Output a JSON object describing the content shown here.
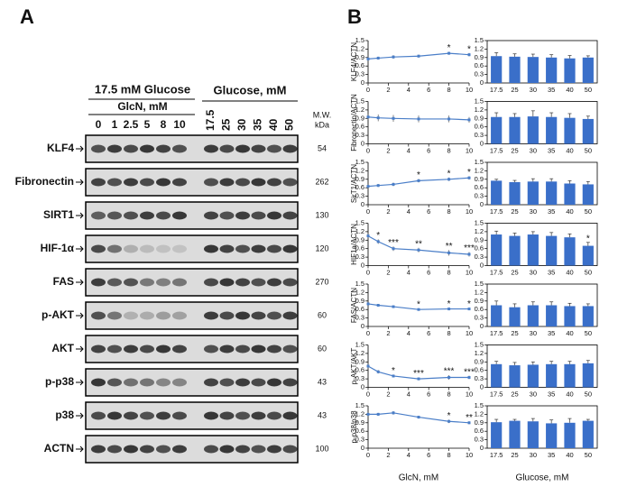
{
  "panel_a": {
    "label": "A",
    "left_header": "17.5 mM Glucose",
    "left_subheader": "GlcN, mM",
    "left_lanes": [
      "0",
      "1",
      "2.5",
      "5",
      "8",
      "10"
    ],
    "right_header": "Glucose, mM",
    "right_lanes": [
      "17.5",
      "25",
      "30",
      "35",
      "40",
      "50"
    ],
    "mw_header": [
      "M.W.",
      "kDa"
    ],
    "rows": [
      {
        "name": "KLF4",
        "mw": "54"
      },
      {
        "name": "Fibronectin",
        "mw": "262"
      },
      {
        "name": "SIRT1",
        "mw": "130"
      },
      {
        "name": "HIF-1α",
        "mw": "120"
      },
      {
        "name": "FAS",
        "mw": "270"
      },
      {
        "name": "p-AKT",
        "mw": "60"
      },
      {
        "name": "AKT",
        "mw": "60"
      },
      {
        "name": "p-p38",
        "mw": "43"
      },
      {
        "name": "p38",
        "mw": "43"
      },
      {
        "name": "ACTN",
        "mw": "100"
      }
    ]
  },
  "panel_b": {
    "label": "B"
  },
  "chart_data": [
    {
      "type": "line",
      "ylabel": "KLF4/ACTN",
      "x": [
        0,
        1,
        2.5,
        5,
        8,
        10
      ],
      "values": [
        0.85,
        0.88,
        0.92,
        0.95,
        1.05,
        1.0
      ],
      "errors": [
        0.06,
        0.05,
        0.06,
        0.05,
        0.05,
        0.06
      ],
      "color": "#4a7ec8",
      "xlim": [
        0,
        10
      ],
      "xticks": [
        0,
        2,
        4,
        6,
        8,
        10
      ],
      "ylim": [
        0,
        1.5
      ],
      "yticks": [
        0,
        0.3,
        0.6,
        0.9,
        1.2,
        1.5
      ],
      "annotations": [
        {
          "x": 8,
          "text": "*"
        },
        {
          "x": 10,
          "text": "*"
        }
      ]
    },
    {
      "type": "bar",
      "categories": [
        "17.5",
        "25",
        "30",
        "35",
        "40",
        "50"
      ],
      "values": [
        0.95,
        0.93,
        0.92,
        0.9,
        0.87,
        0.9
      ],
      "errors": [
        0.12,
        0.1,
        0.1,
        0.1,
        0.1,
        0.06
      ],
      "color": "#3a6fc9",
      "ylim": [
        0,
        1.5
      ],
      "yticks": [
        0,
        0.3,
        0.6,
        0.9,
        1.2,
        1.5
      ]
    },
    {
      "type": "line",
      "ylabel": "Fibronectin/ACTN",
      "x": [
        0,
        1,
        2.5,
        5,
        8,
        10
      ],
      "values": [
        0.95,
        0.92,
        0.9,
        0.88,
        0.88,
        0.85
      ],
      "errors": [
        0.1,
        0.12,
        0.12,
        0.12,
        0.12,
        0.1
      ],
      "color": "#4a7ec8",
      "xlim": [
        0,
        10
      ],
      "xticks": [
        0,
        2,
        4,
        6,
        8,
        10
      ],
      "ylim": [
        0,
        1.5
      ],
      "yticks": [
        0,
        0.3,
        0.6,
        0.9,
        1.2,
        1.5
      ],
      "annotations": []
    },
    {
      "type": "bar",
      "categories": [
        "17.5",
        "25",
        "30",
        "35",
        "40",
        "50"
      ],
      "values": [
        0.95,
        0.95,
        0.97,
        0.95,
        0.92,
        0.88
      ],
      "errors": [
        0.15,
        0.12,
        0.2,
        0.15,
        0.15,
        0.1
      ],
      "color": "#3a6fc9",
      "ylim": [
        0,
        1.5
      ],
      "yticks": [
        0,
        0.3,
        0.6,
        0.9,
        1.2,
        1.5
      ]
    },
    {
      "type": "line",
      "ylabel": "SirT1/ACTN",
      "x": [
        0,
        1,
        2.5,
        5,
        8,
        10
      ],
      "values": [
        0.65,
        0.68,
        0.72,
        0.85,
        0.9,
        0.95
      ],
      "errors": [
        0.06,
        0.05,
        0.06,
        0.06,
        0.06,
        0.06
      ],
      "color": "#4a7ec8",
      "xlim": [
        0,
        10
      ],
      "xticks": [
        0,
        2,
        4,
        6,
        8,
        10
      ],
      "ylim": [
        0,
        1.5
      ],
      "yticks": [
        0,
        0.3,
        0.6,
        0.9,
        1.2,
        1.5
      ],
      "annotations": [
        {
          "x": 5,
          "text": "*"
        },
        {
          "x": 8,
          "text": "*"
        },
        {
          "x": 10,
          "text": "*"
        }
      ]
    },
    {
      "type": "bar",
      "categories": [
        "17.5",
        "25",
        "30",
        "35",
        "40",
        "50"
      ],
      "values": [
        0.85,
        0.8,
        0.82,
        0.82,
        0.75,
        0.72
      ],
      "errors": [
        0.05,
        0.06,
        0.1,
        0.1,
        0.1,
        0.1
      ],
      "color": "#3a6fc9",
      "ylim": [
        0,
        1.5
      ],
      "yticks": [
        0,
        0.3,
        0.6,
        0.9,
        1.2,
        1.5
      ]
    },
    {
      "type": "line",
      "ylabel": "HIF1a/ACTN",
      "x": [
        0,
        1,
        2.5,
        5,
        8,
        10
      ],
      "values": [
        1.05,
        0.85,
        0.6,
        0.55,
        0.45,
        0.4
      ],
      "errors": [
        0.08,
        0.08,
        0.08,
        0.08,
        0.1,
        0.08
      ],
      "color": "#4a7ec8",
      "xlim": [
        0,
        10
      ],
      "xticks": [
        0,
        2,
        4,
        6,
        8,
        10
      ],
      "ylim": [
        0,
        1.5
      ],
      "yticks": [
        0,
        0.3,
        0.6,
        0.9,
        1.2,
        1.5
      ],
      "annotations": [
        {
          "x": 1,
          "text": "*"
        },
        {
          "x": 2.5,
          "text": "***"
        },
        {
          "x": 5,
          "text": "**"
        },
        {
          "x": 8,
          "text": "**"
        },
        {
          "x": 10,
          "text": "***"
        }
      ]
    },
    {
      "type": "bar",
      "categories": [
        "17.5",
        "25",
        "30",
        "35",
        "40",
        "50"
      ],
      "values": [
        1.1,
        1.05,
        1.1,
        1.05,
        1.0,
        0.7
      ],
      "errors": [
        0.12,
        0.1,
        0.1,
        0.12,
        0.12,
        0.12
      ],
      "color": "#3a6fc9",
      "ylim": [
        0,
        1.5
      ],
      "yticks": [
        0,
        0.3,
        0.6,
        0.9,
        1.2,
        1.5
      ],
      "annotations": [
        {
          "x": "50",
          "text": "*"
        }
      ]
    },
    {
      "type": "line",
      "ylabel": "FAS/ACTN",
      "x": [
        0,
        1,
        2.5,
        5,
        8,
        10
      ],
      "values": [
        0.8,
        0.75,
        0.7,
        0.6,
        0.62,
        0.62
      ],
      "errors": [
        0.05,
        0.04,
        0.04,
        0.04,
        0.04,
        0.04
      ],
      "color": "#4a7ec8",
      "xlim": [
        0,
        10
      ],
      "xticks": [
        0,
        2,
        4,
        6,
        8,
        10
      ],
      "ylim": [
        0,
        1.5
      ],
      "yticks": [
        0,
        0.3,
        0.6,
        0.9,
        1.2,
        1.5
      ],
      "annotations": [
        {
          "x": 5,
          "text": "*"
        },
        {
          "x": 8,
          "text": "*"
        },
        {
          "x": 10,
          "text": "*"
        }
      ]
    },
    {
      "type": "bar",
      "categories": [
        "17.5",
        "25",
        "30",
        "35",
        "40",
        "50"
      ],
      "values": [
        0.75,
        0.68,
        0.75,
        0.75,
        0.72,
        0.72
      ],
      "errors": [
        0.15,
        0.12,
        0.12,
        0.12,
        0.1,
        0.08
      ],
      "color": "#3a6fc9",
      "ylim": [
        0,
        1.5
      ],
      "yticks": [
        0,
        0.3,
        0.6,
        0.9,
        1.2,
        1.5
      ]
    },
    {
      "type": "line",
      "ylabel": "p-AKT/AKT",
      "x": [
        0,
        1,
        2.5,
        5,
        8,
        10
      ],
      "values": [
        0.75,
        0.55,
        0.4,
        0.3,
        0.35,
        0.35
      ],
      "errors": [
        0.08,
        0.06,
        0.05,
        0.05,
        0.08,
        0.06
      ],
      "color": "#4a7ec8",
      "xlim": [
        0,
        10
      ],
      "xticks": [
        0,
        2,
        4,
        6,
        8,
        10
      ],
      "ylim": [
        0,
        1.5
      ],
      "yticks": [
        0,
        0.3,
        0.6,
        0.9,
        1.2,
        1.5
      ],
      "annotations": [
        {
          "x": 2.5,
          "text": "*"
        },
        {
          "x": 5,
          "text": "***"
        },
        {
          "x": 8,
          "text": "***"
        },
        {
          "x": 10,
          "text": "***"
        }
      ]
    },
    {
      "type": "bar",
      "categories": [
        "17.5",
        "25",
        "30",
        "35",
        "40",
        "50"
      ],
      "values": [
        0.82,
        0.78,
        0.8,
        0.82,
        0.82,
        0.85
      ],
      "errors": [
        0.1,
        0.1,
        0.1,
        0.1,
        0.1,
        0.1
      ],
      "color": "#3a6fc9",
      "ylim": [
        0,
        1.5
      ],
      "yticks": [
        0,
        0.3,
        0.6,
        0.9,
        1.2,
        1.5
      ]
    },
    {
      "type": "line",
      "ylabel": "p-p38/p38",
      "xlabel": "GlcN, mM",
      "x": [
        0,
        1,
        2.5,
        5,
        8,
        10
      ],
      "values": [
        1.2,
        1.2,
        1.25,
        1.1,
        0.95,
        0.9
      ],
      "errors": [
        0.06,
        0.05,
        0.06,
        0.05,
        0.06,
        0.05
      ],
      "color": "#4a7ec8",
      "xlim": [
        0,
        10
      ],
      "xticks": [
        0,
        2,
        4,
        6,
        8,
        10
      ],
      "ylim": [
        0,
        1.5
      ],
      "yticks": [
        0,
        0.3,
        0.6,
        0.9,
        1.2,
        1.5
      ],
      "annotations": [
        {
          "x": 8,
          "text": "*"
        },
        {
          "x": 10,
          "text": "**"
        }
      ]
    },
    {
      "type": "bar",
      "xlabel": "Glucose, mM",
      "categories": [
        "17.5",
        "25",
        "30",
        "35",
        "40",
        "50"
      ],
      "values": [
        0.92,
        0.97,
        0.95,
        0.88,
        0.9,
        0.97
      ],
      "errors": [
        0.1,
        0.05,
        0.1,
        0.12,
        0.15,
        0.05
      ],
      "color": "#3a6fc9",
      "ylim": [
        0,
        1.5
      ],
      "yticks": [
        0,
        0.3,
        0.6,
        0.9,
        1.2,
        1.5
      ]
    }
  ]
}
